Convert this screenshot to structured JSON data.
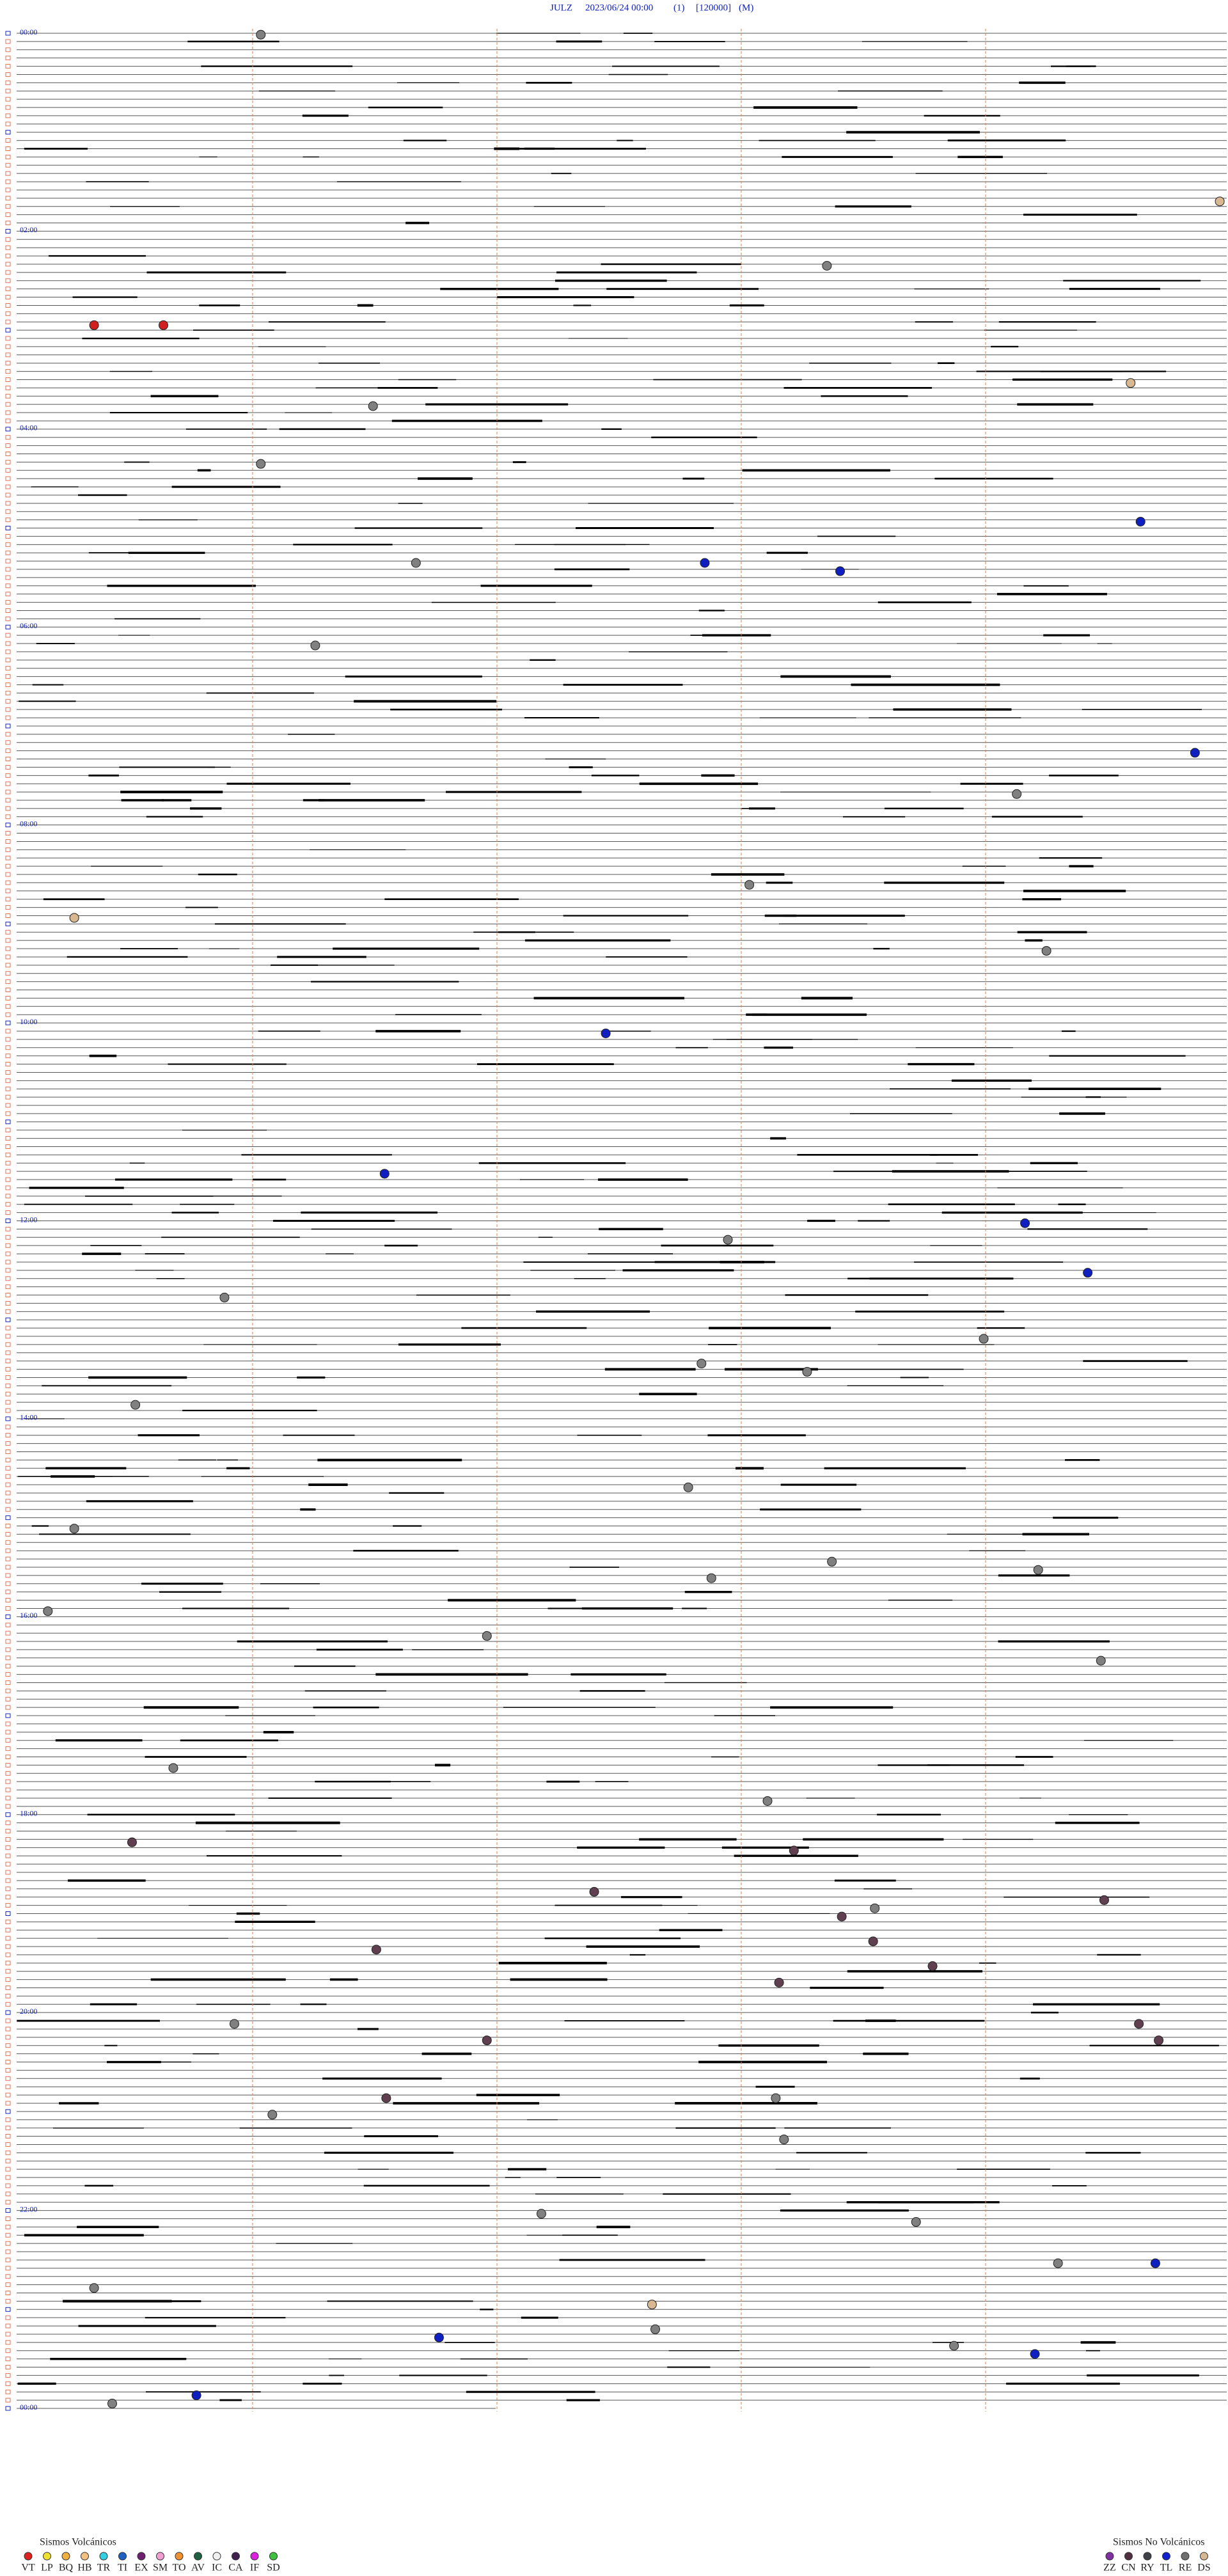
{
  "header": {
    "station": "JULZ",
    "datetime": "2023/06/24 00:00",
    "channel": "(1)",
    "scale": "[120000]",
    "mode": "(M)"
  },
  "hour_labels": [
    "00:00",
    "02:00",
    "04:00",
    "06:00",
    "08:00",
    "10:00",
    "12:00",
    "14:00",
    "16:00",
    "18:00",
    "20:00",
    "22:00",
    "00:00"
  ],
  "legends": {
    "volcanic": {
      "title": "Sismos Volcánicos",
      "items": [
        {
          "label": "VT",
          "color": "#e02020"
        },
        {
          "label": "LP",
          "color": "#f0e030"
        },
        {
          "label": "BQ",
          "color": "#f0b040"
        },
        {
          "label": "HB",
          "color": "#f4c080"
        },
        {
          "label": "TR",
          "color": "#30d0e0"
        },
        {
          "label": "TI",
          "color": "#2060c0"
        },
        {
          "label": "EX",
          "color": "#702070"
        },
        {
          "label": "SM",
          "color": "#f0a0d0"
        },
        {
          "label": "TO",
          "color": "#f09030"
        },
        {
          "label": "AV",
          "color": "#206040"
        },
        {
          "label": "IC",
          "color": "#f0f0f0"
        },
        {
          "label": "CA",
          "color": "#402050"
        },
        {
          "label": "IF",
          "color": "#e020e0"
        },
        {
          "label": "SD",
          "color": "#40c040"
        }
      ]
    },
    "non_volcanic": {
      "title": "Sismos No Volcánicos",
      "items": [
        {
          "label": "ZZ",
          "color": "#8030a0"
        },
        {
          "label": "CN",
          "color": "#503040"
        },
        {
          "label": "RY",
          "color": "#404048"
        },
        {
          "label": "TL",
          "color": "#1020d0"
        },
        {
          "label": "RE",
          "color": "#707070"
        },
        {
          "label": "DS",
          "color": "#d8b890"
        }
      ]
    }
  }
}
